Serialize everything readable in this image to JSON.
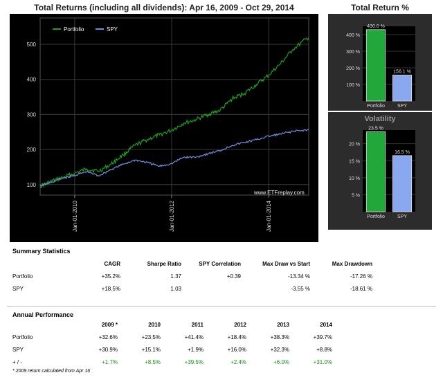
{
  "main_chart": {
    "title": "Total Returns (including all dividends): Apr 16, 2009 - Oct 29, 2014",
    "watermark": "www.ETFreplay.com",
    "legend": [
      "Portfolio",
      "SPY"
    ]
  },
  "total_return": {
    "title": "Total Return %"
  },
  "volatility": {
    "title": "Volatility"
  },
  "colors": {
    "portfolio": "#1f9e1f",
    "spy": "#6f8fe0",
    "bar_portfolio": "#22a83a",
    "bar_spy": "#8aa8f0",
    "positive_diff": "#1a8c1a"
  },
  "summary": {
    "title": "Summary Statistics",
    "headers": [
      "",
      "CAGR",
      "Sharpe Ratio",
      "SPY Correlation",
      "Max Draw vs Start",
      "Max Drawdown"
    ],
    "rows": [
      [
        "Portfolio",
        "+35.2%",
        "1.37",
        "+0.39",
        "-13.34 %",
        "-17.26 %"
      ],
      [
        "SPY",
        "+18.5%",
        "1.03",
        "",
        "-3.55 %",
        "-18.61 %"
      ]
    ]
  },
  "annual": {
    "title": "Annual Performance",
    "headers": [
      "",
      "2009 *",
      "2010",
      "2011",
      "2012",
      "2013",
      "2014"
    ],
    "rows": [
      [
        "Portfolio",
        "+32.6%",
        "+23.5%",
        "+41.4%",
        "+18.4%",
        "+38.3%",
        "+39.7%"
      ],
      [
        "SPY",
        "+30.9%",
        "+15.1%",
        "+1.9%",
        "+16.0%",
        "+32.3%",
        "+8.8%"
      ],
      [
        "+ / -",
        "+1.7%",
        "+8.5%",
        "+39.5%",
        "+2.4%",
        "+6.0%",
        "+31.0%"
      ]
    ],
    "footnote": "* 2009 return calculated from Apr 16"
  },
  "chart_data": [
    {
      "type": "line",
      "title": "Total Returns (including all dividends): Apr 16, 2009 - Oct 29, 2014",
      "xlabel": "",
      "ylabel": "",
      "x_ticks": [
        "Jan-01-2010",
        "Jan-01-2012",
        "Jan-01-2014"
      ],
      "y_ticks": [
        100,
        200,
        300,
        400,
        500
      ],
      "ylim": [
        70,
        575
      ],
      "grid": true,
      "legend_position": "top-left",
      "x": [
        "2009-04-16",
        "2009-07-01",
        "2009-10-01",
        "2010-01-01",
        "2010-04-01",
        "2010-07-01",
        "2010-10-01",
        "2011-01-01",
        "2011-04-01",
        "2011-07-01",
        "2011-10-01",
        "2012-01-01",
        "2012-04-01",
        "2012-07-01",
        "2012-10-01",
        "2013-01-01",
        "2013-04-01",
        "2013-07-01",
        "2013-10-01",
        "2014-01-01",
        "2014-04-01",
        "2014-07-01",
        "2014-10-29"
      ],
      "series": [
        {
          "name": "Portfolio",
          "values": [
            95,
            108,
            120,
            132,
            145,
            138,
            158,
            185,
            212,
            228,
            242,
            255,
            275,
            285,
            300,
            312,
            345,
            360,
            385,
            412,
            445,
            485,
            520
          ]
        },
        {
          "name": "SPY",
          "values": [
            96,
            105,
            118,
            126,
            137,
            125,
            143,
            158,
            170,
            163,
            152,
            160,
            178,
            178,
            188,
            197,
            212,
            220,
            228,
            238,
            244,
            252,
            256
          ]
        }
      ]
    },
    {
      "type": "bar",
      "title": "Total Return %",
      "categories": [
        "Portfolio",
        "SPY"
      ],
      "values": [
        430.0,
        156.1
      ],
      "labels": [
        "430.0 %",
        "156.1 %"
      ],
      "y_ticks": [
        "100 %",
        "200 %",
        "300 %",
        "400 %"
      ],
      "ylim": [
        0,
        450
      ]
    },
    {
      "type": "bar",
      "title": "Volatility",
      "categories": [
        "Portfolio",
        "SPY"
      ],
      "values": [
        23.5,
        16.5
      ],
      "labels": [
        "23.5 %",
        "16.5 %"
      ],
      "y_ticks": [
        "5 %",
        "10 %",
        "15 %",
        "20 %"
      ],
      "ylim": [
        0,
        24
      ]
    }
  ]
}
